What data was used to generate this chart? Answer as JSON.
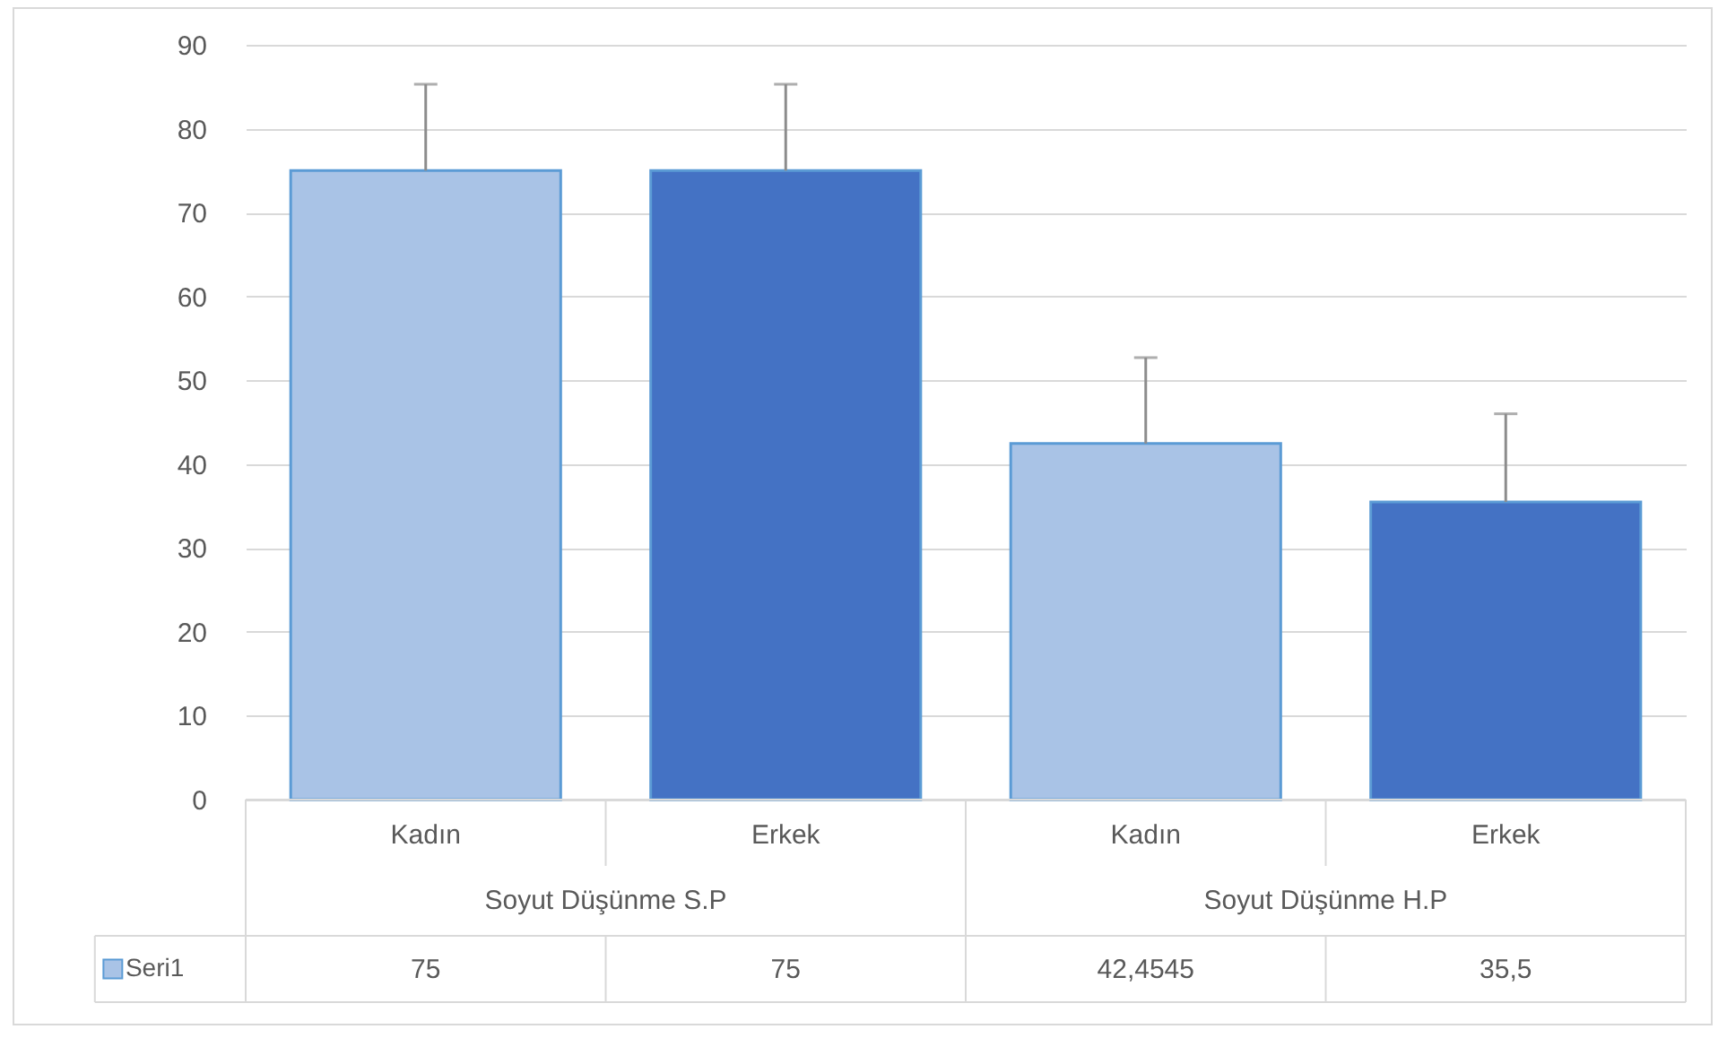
{
  "chart_data": {
    "type": "bar",
    "categories": [
      "Kadın",
      "Erkek",
      "Kadın",
      "Erkek"
    ],
    "annotations": [
      "Soyut Düşünme S.P",
      "Soyut Düşünme H.P"
    ],
    "series": [
      {
        "name": "Seri1",
        "color": "#a9c3e6",
        "colors": [
          "#a9c3e6",
          "#4472c4",
          "#a9c3e6",
          "#4472c4"
        ],
        "values": [
          75,
          75,
          42.4545,
          35.5
        ],
        "errors": [
          [
            75,
            85.3
          ],
          [
            75,
            85.3
          ],
          [
            42.4545,
            52.7
          ],
          [
            35.5,
            46
          ]
        ],
        "value_labels": [
          "75",
          "75",
          "42,4545",
          "35,5"
        ]
      }
    ],
    "ylim": [
      0,
      90
    ],
    "yticks": [
      0,
      10,
      20,
      30,
      40,
      50,
      60,
      70,
      80,
      90
    ],
    "grid": "y",
    "legend": "bottom"
  }
}
